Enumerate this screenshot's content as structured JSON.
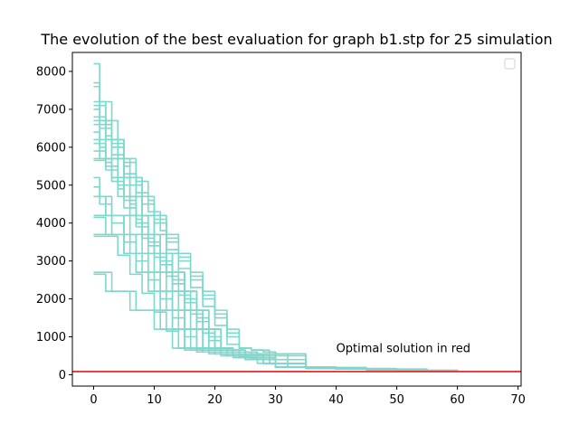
{
  "chart_data": {
    "type": "line",
    "title": "The evolution of the best evaluation for graph b1.stp for 25 simulation",
    "xlabel": "",
    "ylabel": "",
    "xlim": [
      -3.5,
      70.5
    ],
    "ylim": [
      -300,
      8500
    ],
    "xticks": [
      0,
      10,
      20,
      30,
      40,
      50,
      60,
      70
    ],
    "yticks": [
      0,
      1000,
      2000,
      3000,
      4000,
      5000,
      6000,
      7000,
      8000
    ],
    "grid": false,
    "legend": {
      "placement": "top-right",
      "entries": []
    },
    "annotation": {
      "text": "Optimal solution in red",
      "x": 40,
      "y": 500
    },
    "optimal_line": {
      "y": 82,
      "color": "#e41a1c"
    },
    "series_color": "#7fd8cc",
    "series": [
      {
        "x": [
          0,
          1,
          3,
          5,
          6,
          8,
          9,
          11,
          12,
          13,
          14,
          16,
          18,
          20,
          22,
          24,
          26,
          28,
          30,
          35,
          40,
          45,
          50,
          55,
          60
        ],
        "y": [
          8200,
          7200,
          6200,
          5200,
          4700,
          4200,
          3700,
          3200,
          2700,
          2200,
          1700,
          1200,
          700,
          650,
          600,
          550,
          400,
          300,
          200,
          180,
          160,
          140,
          120,
          100,
          90
        ]
      },
      {
        "x": [
          0,
          1,
          2,
          4,
          5,
          7,
          8,
          10,
          11,
          13,
          15,
          17,
          19,
          21,
          23,
          25,
          27,
          30,
          35,
          40,
          45,
          50
        ],
        "y": [
          7700,
          7200,
          6700,
          6200,
          5700,
          5200,
          4200,
          3700,
          3200,
          2700,
          2200,
          1700,
          1200,
          700,
          500,
          400,
          300,
          200,
          170,
          150,
          130,
          110
        ]
      },
      {
        "x": [
          0,
          1,
          3,
          4,
          6,
          8,
          10,
          12,
          14,
          16,
          18,
          20,
          22,
          24,
          26,
          28,
          30,
          32,
          40,
          50,
          60
        ],
        "y": [
          7600,
          6700,
          6200,
          5700,
          5200,
          4700,
          4200,
          3700,
          3200,
          2700,
          2200,
          1700,
          1200,
          700,
          650,
          600,
          550,
          200,
          160,
          120,
          100
        ]
      },
      {
        "x": [
          0,
          1,
          2,
          4,
          6,
          7,
          9,
          11,
          13,
          15,
          17,
          18,
          20,
          22,
          24,
          26,
          28,
          35,
          45,
          55
        ],
        "y": [
          7200,
          6700,
          5700,
          5200,
          4700,
          4200,
          3700,
          3200,
          2700,
          2200,
          1700,
          1200,
          700,
          600,
          500,
          400,
          300,
          190,
          150,
          110
        ]
      },
      {
        "x": [
          0,
          2,
          3,
          5,
          7,
          9,
          10,
          12,
          14,
          16,
          18,
          20,
          22,
          24,
          26,
          28,
          30,
          35,
          45,
          55
        ],
        "y": [
          7100,
          6600,
          6100,
          5600,
          5100,
          4600,
          4100,
          3600,
          3100,
          2600,
          2100,
          1600,
          1100,
          700,
          650,
          600,
          500,
          180,
          140,
          100
        ]
      },
      {
        "x": [
          0,
          1,
          3,
          5,
          6,
          8,
          10,
          12,
          13,
          15,
          17,
          19,
          21,
          23,
          25,
          27,
          30,
          40,
          50
        ],
        "y": [
          6700,
          6200,
          5700,
          5200,
          4700,
          4200,
          3700,
          3200,
          2700,
          2200,
          1700,
          1200,
          700,
          650,
          600,
          550,
          200,
          160,
          120
        ]
      },
      {
        "x": [
          0,
          2,
          4,
          5,
          7,
          8,
          10,
          12,
          14,
          15,
          17,
          19,
          21,
          23,
          25,
          27,
          29,
          35,
          45
        ],
        "y": [
          6600,
          6200,
          5700,
          5200,
          4700,
          4200,
          3700,
          3200,
          2700,
          2200,
          1700,
          1200,
          700,
          650,
          600,
          500,
          300,
          180,
          140
        ]
      },
      {
        "x": [
          0,
          1,
          2,
          4,
          5,
          7,
          9,
          10,
          12,
          14,
          16,
          18,
          20,
          22,
          24,
          26,
          28,
          35,
          45,
          55
        ],
        "y": [
          6200,
          5700,
          5700,
          5200,
          4700,
          4200,
          3700,
          3200,
          2700,
          2200,
          1700,
          1200,
          700,
          650,
          600,
          550,
          400,
          170,
          130,
          100
        ]
      },
      {
        "x": [
          0,
          2,
          3,
          5,
          6,
          8,
          10,
          11,
          13,
          15,
          17,
          19,
          21,
          23,
          25,
          27,
          30,
          40,
          50
        ],
        "y": [
          6100,
          5700,
          5200,
          4700,
          4200,
          3700,
          3200,
          2700,
          2200,
          1700,
          1200,
          700,
          650,
          600,
          550,
          500,
          200,
          150,
          110
        ]
      },
      {
        "x": [
          0,
          1,
          3,
          4,
          6,
          8,
          9,
          11,
          13,
          15,
          17,
          19,
          21,
          23,
          25,
          28,
          35,
          45
        ],
        "y": [
          5700,
          5700,
          5200,
          4700,
          4200,
          3700,
          3200,
          2700,
          2200,
          1700,
          1200,
          700,
          650,
          600,
          550,
          300,
          180,
          140
        ]
      },
      {
        "x": [
          0,
          2,
          3,
          5,
          7,
          8,
          10,
          12,
          14,
          16,
          18,
          20,
          22,
          24,
          26,
          29,
          35,
          45,
          55
        ],
        "y": [
          5650,
          5600,
          5100,
          4600,
          4100,
          3600,
          3100,
          2600,
          2100,
          1600,
          1100,
          700,
          650,
          600,
          550,
          300,
          170,
          130,
          100
        ]
      },
      {
        "x": [
          0,
          1,
          2,
          4,
          5,
          7,
          9,
          11,
          13,
          15,
          17,
          19,
          21,
          23,
          26,
          30,
          40,
          50
        ],
        "y": [
          5200,
          4700,
          4200,
          4200,
          3700,
          3200,
          2700,
          2200,
          1700,
          1200,
          700,
          650,
          600,
          550,
          400,
          200,
          150,
          110
        ]
      },
      {
        "x": [
          0,
          1,
          3,
          5,
          7,
          9,
          11,
          13,
          15,
          17,
          19,
          21,
          23,
          25,
          28,
          35,
          45
        ],
        "y": [
          4700,
          4700,
          4200,
          3700,
          3200,
          2700,
          2200,
          1700,
          1200,
          700,
          650,
          600,
          550,
          500,
          300,
          170,
          130
        ]
      },
      {
        "x": [
          0,
          2,
          4,
          6,
          8,
          10,
          12,
          14,
          16,
          18,
          20,
          22,
          24,
          26,
          28,
          35,
          45,
          55
        ],
        "y": [
          4700,
          4200,
          4200,
          3700,
          3200,
          2700,
          2200,
          1700,
          1200,
          700,
          650,
          600,
          550,
          500,
          300,
          170,
          130,
          100
        ]
      },
      {
        "x": [
          0,
          1,
          3,
          5,
          7,
          9,
          11,
          13,
          15,
          17,
          19,
          21,
          23,
          25,
          27,
          30,
          40,
          50
        ],
        "y": [
          4200,
          4200,
          3700,
          3200,
          2700,
          2200,
          1700,
          1200,
          700,
          650,
          600,
          550,
          500,
          450,
          400,
          200,
          150,
          110
        ]
      },
      {
        "x": [
          0,
          2,
          4,
          6,
          8,
          10,
          12,
          14,
          16,
          18,
          20,
          22,
          24,
          26,
          30,
          40,
          50
        ],
        "y": [
          4150,
          3700,
          3700,
          3200,
          2700,
          2200,
          1700,
          1200,
          700,
          650,
          600,
          550,
          500,
          450,
          200,
          150,
          110
        ]
      },
      {
        "x": [
          0,
          3,
          5,
          7,
          9,
          11,
          13,
          15,
          17,
          19,
          21,
          23,
          25,
          27,
          30,
          40,
          50,
          60
        ],
        "y": [
          3700,
          3700,
          3200,
          2700,
          2200,
          1700,
          1200,
          700,
          650,
          600,
          550,
          500,
          450,
          400,
          200,
          150,
          110,
          90
        ]
      },
      {
        "x": [
          0,
          2,
          4,
          6,
          8,
          10,
          12,
          14,
          16,
          18,
          20,
          22,
          24,
          26,
          28,
          35,
          45,
          55
        ],
        "y": [
          3650,
          3650,
          3150,
          2650,
          2150,
          1650,
          1150,
          700,
          650,
          600,
          550,
          500,
          450,
          400,
          300,
          170,
          130,
          100
        ]
      },
      {
        "x": [
          0,
          1,
          3,
          5,
          7,
          9,
          11,
          13,
          15,
          17,
          19,
          21,
          23,
          25,
          28,
          35,
          45
        ],
        "y": [
          2700,
          2700,
          2200,
          2200,
          1700,
          1700,
          1200,
          700,
          650,
          600,
          550,
          500,
          450,
          400,
          300,
          170,
          130
        ]
      },
      {
        "x": [
          0,
          2,
          4,
          6,
          8,
          10,
          12,
          14,
          16,
          18,
          20,
          22,
          24,
          26,
          30,
          40,
          50,
          60
        ],
        "y": [
          2650,
          2200,
          2200,
          1700,
          1700,
          1200,
          1200,
          700,
          650,
          600,
          550,
          500,
          450,
          400,
          200,
          150,
          110,
          90
        ]
      },
      {
        "x": [
          0,
          1,
          3,
          5,
          6,
          8,
          10,
          12,
          14,
          16,
          18,
          20,
          22,
          24,
          26,
          28,
          30,
          35,
          45,
          55
        ],
        "y": [
          7000,
          6500,
          6000,
          5500,
          5000,
          4500,
          4000,
          3500,
          3000,
          2500,
          2000,
          1500,
          1000,
          700,
          650,
          600,
          550,
          180,
          140,
          100
        ]
      },
      {
        "x": [
          0,
          2,
          3,
          5,
          7,
          9,
          11,
          12,
          14,
          16,
          18,
          20,
          22,
          24,
          26,
          29,
          35,
          45
        ],
        "y": [
          6800,
          6300,
          5800,
          5300,
          4800,
          4300,
          3800,
          3300,
          2800,
          2300,
          1800,
          1300,
          800,
          700,
          650,
          300,
          170,
          130
        ]
      },
      {
        "x": [
          0,
          1,
          2,
          4,
          6,
          7,
          9,
          11,
          13,
          15,
          17,
          19,
          21,
          23,
          25,
          27,
          30,
          40,
          50,
          60
        ],
        "y": [
          6400,
          6000,
          5500,
          5000,
          4500,
          4000,
          3500,
          3000,
          2500,
          2000,
          1500,
          1000,
          700,
          650,
          600,
          550,
          200,
          150,
          110,
          90
        ]
      },
      {
        "x": [
          0,
          2,
          4,
          5,
          7,
          9,
          11,
          13,
          15,
          17,
          19,
          21,
          23,
          25,
          27,
          30,
          40,
          50
        ],
        "y": [
          5900,
          5400,
          4900,
          4400,
          3900,
          3400,
          2900,
          2400,
          1900,
          1400,
          900,
          700,
          650,
          600,
          550,
          200,
          150,
          110
        ]
      },
      {
        "x": [
          0,
          1,
          3,
          5,
          7,
          9,
          11,
          13,
          15,
          17,
          19,
          21,
          23,
          25,
          28,
          35,
          45,
          55
        ],
        "y": [
          4950,
          4500,
          4000,
          3500,
          3000,
          2500,
          2000,
          1500,
          1000,
          700,
          650,
          600,
          550,
          500,
          300,
          170,
          130,
          100
        ]
      }
    ]
  }
}
